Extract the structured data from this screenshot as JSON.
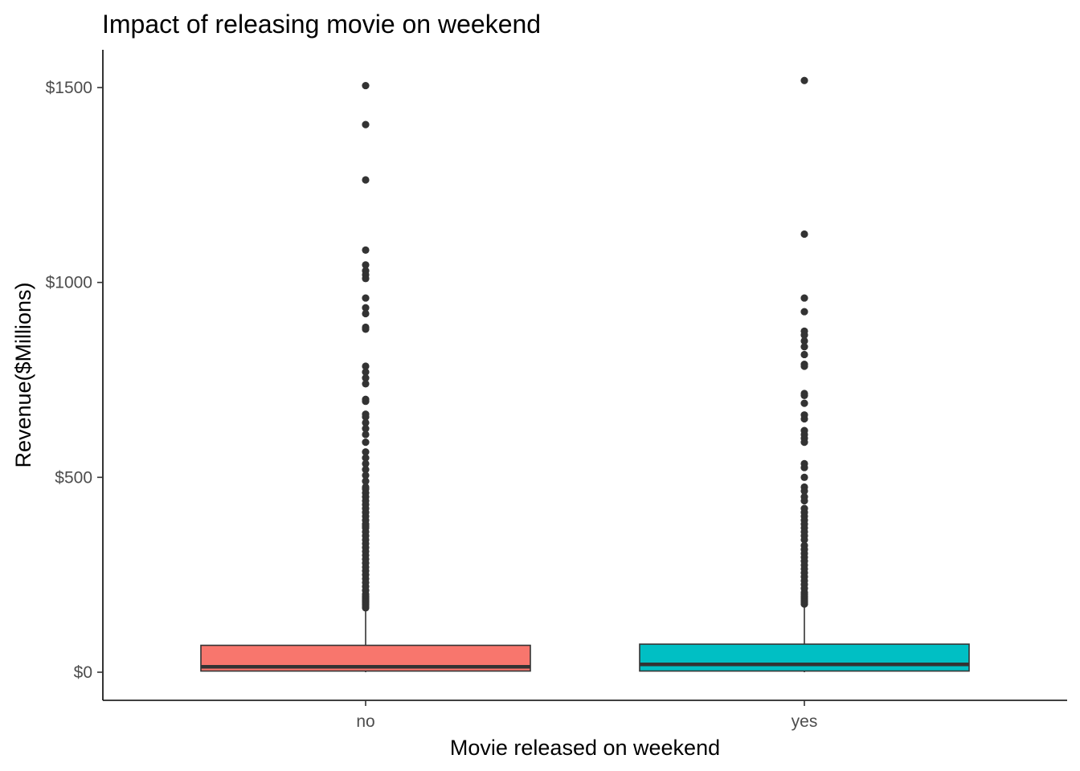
{
  "chart_data": {
    "type": "box",
    "title": "Impact of releasing movie on weekend",
    "xlabel": "Movie released on weekend",
    "ylabel": "Revenue($Millions)",
    "ylim": [
      -75,
      1590
    ],
    "y_ticks": [
      0,
      500,
      1000,
      1500
    ],
    "y_tick_labels": [
      "$0",
      "$500",
      "$1000",
      "$1500"
    ],
    "categories": [
      "no",
      "yes"
    ],
    "colors": [
      "#F8766D",
      "#00BFC4"
    ],
    "grid": false,
    "legend": "none",
    "boxes": [
      {
        "category": "no",
        "min": 0,
        "q1": 3,
        "median": 14,
        "q3": 69,
        "whisker_high": 160,
        "outliers": [
          1505,
          1405,
          1263,
          1083,
          1045,
          1030,
          1020,
          1010,
          960,
          935,
          920,
          885,
          880,
          785,
          770,
          755,
          740,
          700,
          695,
          662,
          655,
          640,
          625,
          610,
          590,
          565,
          550,
          535,
          520,
          505,
          490,
          475,
          470,
          460,
          450,
          440,
          430,
          420,
          410,
          400,
          390,
          380,
          375,
          370,
          360,
          350,
          340,
          330,
          320,
          310,
          300,
          290,
          280,
          270,
          260,
          250,
          240,
          230,
          220,
          210,
          200,
          195,
          190,
          185,
          180,
          175,
          170,
          165
        ]
      },
      {
        "category": "yes",
        "min": 0,
        "q1": 3,
        "median": 20,
        "q3": 72,
        "whisker_high": 170,
        "outliers": [
          1518,
          1124,
          960,
          925,
          875,
          865,
          850,
          835,
          815,
          790,
          785,
          715,
          710,
          690,
          660,
          650,
          620,
          610,
          600,
          590,
          535,
          525,
          500,
          475,
          465,
          450,
          440,
          420,
          410,
          400,
          390,
          380,
          370,
          360,
          350,
          340,
          325,
          315,
          305,
          295,
          285,
          275,
          265,
          255,
          245,
          235,
          225,
          215,
          205,
          200,
          195,
          190,
          185,
          180,
          175
        ]
      }
    ]
  }
}
